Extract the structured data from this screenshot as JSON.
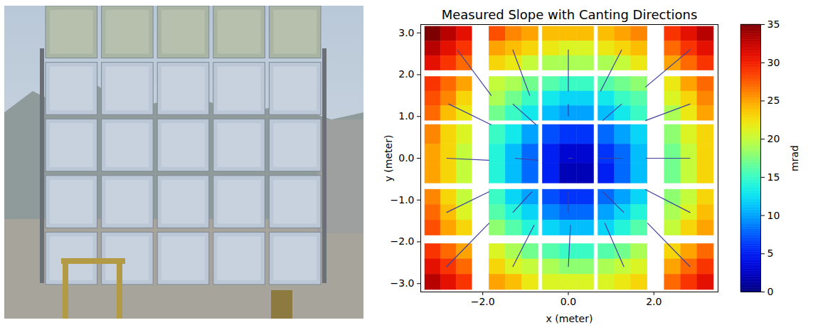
{
  "photo": {
    "rows": 5,
    "columns": 5
  },
  "chart_data": {
    "type": "heatmap",
    "title": "Measured Slope with Canting Directions",
    "x_label": "x (meter)",
    "y_label": "y (meter)",
    "xlim": [
      -3.45,
      3.5
    ],
    "ylim": [
      -3.2,
      3.2
    ],
    "xticks": [
      -2,
      0,
      2
    ],
    "yticks": [
      -3,
      -2,
      -1,
      0,
      1,
      2,
      3
    ],
    "grid": false,
    "heatmap": {
      "column_edges": [
        [
          -3.35,
          -2.25
        ],
        [
          -1.85,
          -0.7
        ],
        [
          -0.6,
          0.6
        ],
        [
          0.7,
          1.85
        ],
        [
          2.25,
          3.4
        ]
      ],
      "row_edges": [
        [
          2.1,
          3.15
        ],
        [
          0.9,
          1.95
        ],
        [
          -0.6,
          0.8
        ],
        [
          -1.85,
          -0.75
        ],
        [
          -3.15,
          -2.05
        ]
      ],
      "values": [
        [
          35,
          33,
          31,
          28,
          26,
          25,
          24,
          24,
          24,
          24,
          25,
          26,
          29,
          31,
          33
        ],
        [
          33,
          31,
          29,
          25,
          24,
          23,
          22,
          21,
          21,
          22,
          23,
          24,
          27,
          29,
          31
        ],
        [
          31,
          29,
          27,
          23,
          22,
          20,
          19,
          19,
          19,
          19,
          20,
          22,
          25,
          27,
          29
        ],
        [
          29,
          27,
          25,
          20,
          19,
          17,
          16,
          15,
          15,
          16,
          17,
          18,
          22,
          25,
          27
        ],
        [
          28,
          26,
          23,
          19,
          17,
          15,
          13,
          12,
          12,
          13,
          15,
          16,
          21,
          23,
          26
        ],
        [
          27,
          24,
          22,
          17,
          15,
          13,
          11,
          10,
          10,
          11,
          13,
          15,
          19,
          22,
          25
        ],
        [
          26,
          23,
          21,
          15,
          13,
          10,
          7,
          6,
          6,
          8,
          10,
          12,
          18,
          21,
          23
        ],
        [
          25,
          23,
          20,
          14,
          11,
          8,
          5,
          3,
          3,
          6,
          8,
          11,
          17,
          20,
          23
        ],
        [
          25,
          23,
          20,
          14,
          11,
          8,
          5,
          2,
          2,
          5,
          8,
          11,
          17,
          20,
          23
        ],
        [
          26,
          23,
          20,
          15,
          12,
          10,
          7,
          6,
          6,
          8,
          10,
          12,
          18,
          20,
          23
        ],
        [
          27,
          24,
          21,
          16,
          14,
          12,
          9,
          8,
          8,
          10,
          12,
          14,
          19,
          21,
          24
        ],
        [
          28,
          25,
          23,
          18,
          16,
          14,
          12,
          11,
          11,
          12,
          14,
          16,
          20,
          23,
          25
        ],
        [
          29,
          27,
          25,
          21,
          19,
          17,
          16,
          15,
          15,
          16,
          17,
          19,
          23,
          25,
          27
        ],
        [
          31,
          29,
          27,
          23,
          21,
          20,
          19,
          18,
          18,
          19,
          20,
          21,
          25,
          27,
          29
        ],
        [
          33,
          31,
          29,
          25,
          24,
          22,
          21,
          21,
          21,
          21,
          22,
          23,
          27,
          29,
          31
        ]
      ],
      "colorbar": {
        "range": [
          0,
          35
        ],
        "ticks": [
          0,
          5,
          10,
          15,
          20,
          25,
          30,
          35
        ],
        "label": "mrad"
      }
    },
    "canting_directions": {
      "color": "#3f3f9f",
      "segments": [
        [
          -1.8,
          1.5,
          -2.6,
          2.6
        ],
        [
          -1.3,
          2.6,
          -0.9,
          1.5
        ],
        [
          0,
          2.6,
          0,
          1.6
        ],
        [
          1.25,
          2.6,
          0.75,
          1.6
        ],
        [
          2.85,
          2.6,
          1.8,
          1.7
        ],
        [
          -2.8,
          1.3,
          -1.8,
          0.8
        ],
        [
          -1.3,
          1.3,
          -0.75,
          0.8
        ],
        [
          0,
          1.3,
          0,
          1.0
        ],
        [
          1.25,
          1.3,
          0.8,
          0.9
        ],
        [
          2.85,
          1.3,
          1.8,
          0.9
        ],
        [
          -2.85,
          0,
          -1.85,
          -0.05
        ],
        [
          -1.25,
          0,
          -0.7,
          -0.05
        ],
        [
          0,
          0,
          0.1,
          0
        ],
        [
          1.25,
          0,
          0.7,
          0
        ],
        [
          2.85,
          0,
          1.8,
          0
        ],
        [
          -2.85,
          -1.3,
          -1.85,
          -0.8
        ],
        [
          -1.3,
          -1.3,
          -0.85,
          -0.8
        ],
        [
          0,
          -1.3,
          0,
          -0.8
        ],
        [
          1.3,
          -1.3,
          0.8,
          -0.8
        ],
        [
          2.85,
          -1.3,
          1.8,
          -0.75
        ],
        [
          -2.85,
          -2.6,
          -1.85,
          -1.55
        ],
        [
          -1.3,
          -2.6,
          -0.8,
          -1.6
        ],
        [
          0,
          -2.6,
          0.05,
          -1.6
        ],
        [
          1.3,
          -2.6,
          0.85,
          -1.55
        ],
        [
          2.85,
          -2.6,
          1.85,
          -1.55
        ]
      ]
    }
  }
}
